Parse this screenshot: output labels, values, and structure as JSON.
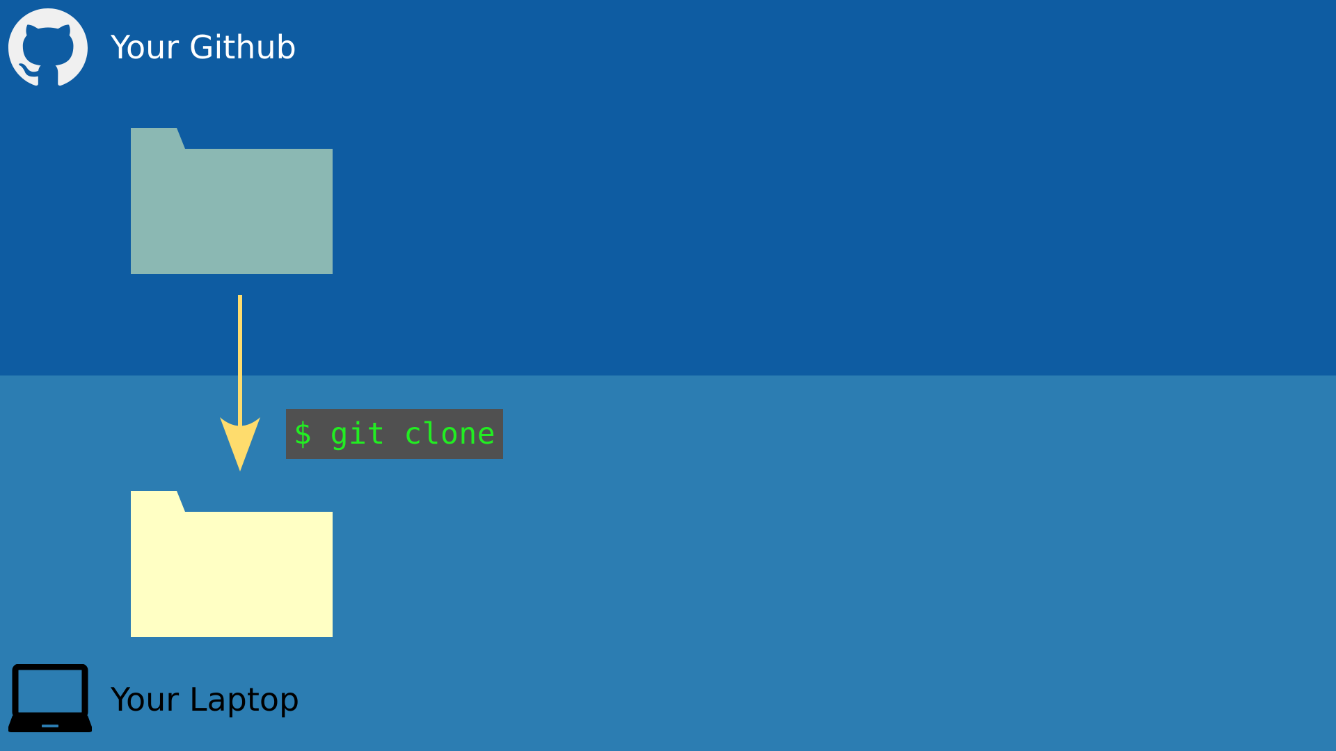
{
  "colors": {
    "remote_background": "#0e5ca2",
    "local_background": "#2c7db2",
    "remote_folder": "#8bb8b3",
    "local_folder": "#ffffc4",
    "arrow": "#fedc6d",
    "command_box": "#505050",
    "command_text": "#22ee22",
    "github_logo": "#f0f0f0",
    "github_label": "#ffffff",
    "laptop_icon": "#000000",
    "laptop_label": "#000000"
  },
  "remote": {
    "label": "Your Github",
    "icon": "github-logo"
  },
  "local": {
    "label": "Your Laptop",
    "icon": "laptop-icon"
  },
  "command": {
    "text": "$ git clone"
  }
}
